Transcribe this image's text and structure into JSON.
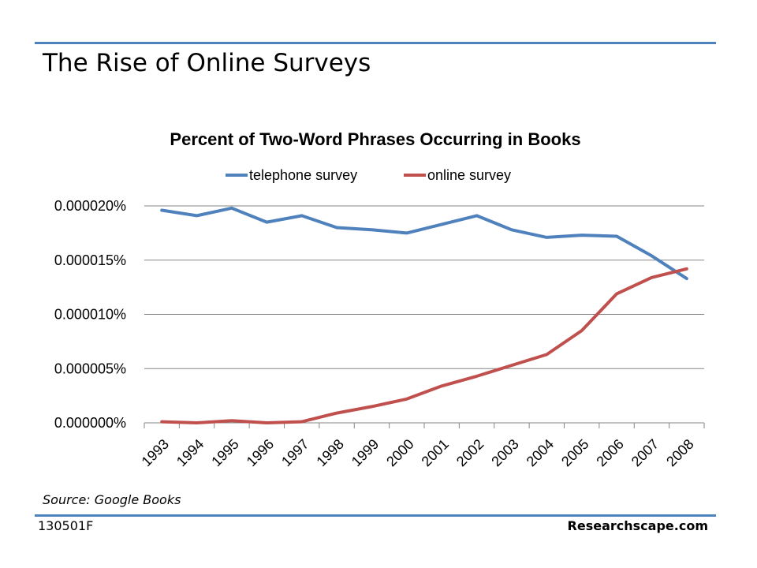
{
  "slide": {
    "title": "The Rise of Online Surveys",
    "source": "Source: Google Books",
    "footer_code": "130501F",
    "footer_site": "Researchscape.com",
    "rule_color": "#4f81bd"
  },
  "chart_data": {
    "type": "line",
    "title": "Percent of Two-Word Phrases Occurring in Books",
    "legend": "top",
    "grid": true,
    "xlabel": "",
    "ylabel": "",
    "x": [
      "1993",
      "1994",
      "1995",
      "1996",
      "1997",
      "1998",
      "1999",
      "2000",
      "2001",
      "2002",
      "2003",
      "2004",
      "2005",
      "2006",
      "2007",
      "2008"
    ],
    "ylim": [
      0,
      2e-05
    ],
    "yticks": [
      "0.000000%",
      "0.000005%",
      "0.000010%",
      "0.000015%",
      "0.000020%"
    ],
    "series": [
      {
        "name": "telephone survey",
        "color": "#4f81bd",
        "values": [
          1.96e-05,
          1.91e-05,
          1.98e-05,
          1.85e-05,
          1.91e-05,
          1.8e-05,
          1.78e-05,
          1.75e-05,
          1.83e-05,
          1.91e-05,
          1.78e-05,
          1.71e-05,
          1.73e-05,
          1.72e-05,
          1.54e-05,
          1.33e-05
        ]
      },
      {
        "name": "online survey",
        "color": "#c0504d",
        "values": [
          1e-07,
          0.0,
          2e-07,
          0.0,
          1e-07,
          9e-07,
          1.5e-06,
          2.2e-06,
          3.4e-06,
          4.3e-06,
          5.3e-06,
          6.3e-06,
          8.5e-06,
          1.19e-05,
          1.34e-05,
          1.42e-05
        ]
      }
    ]
  }
}
